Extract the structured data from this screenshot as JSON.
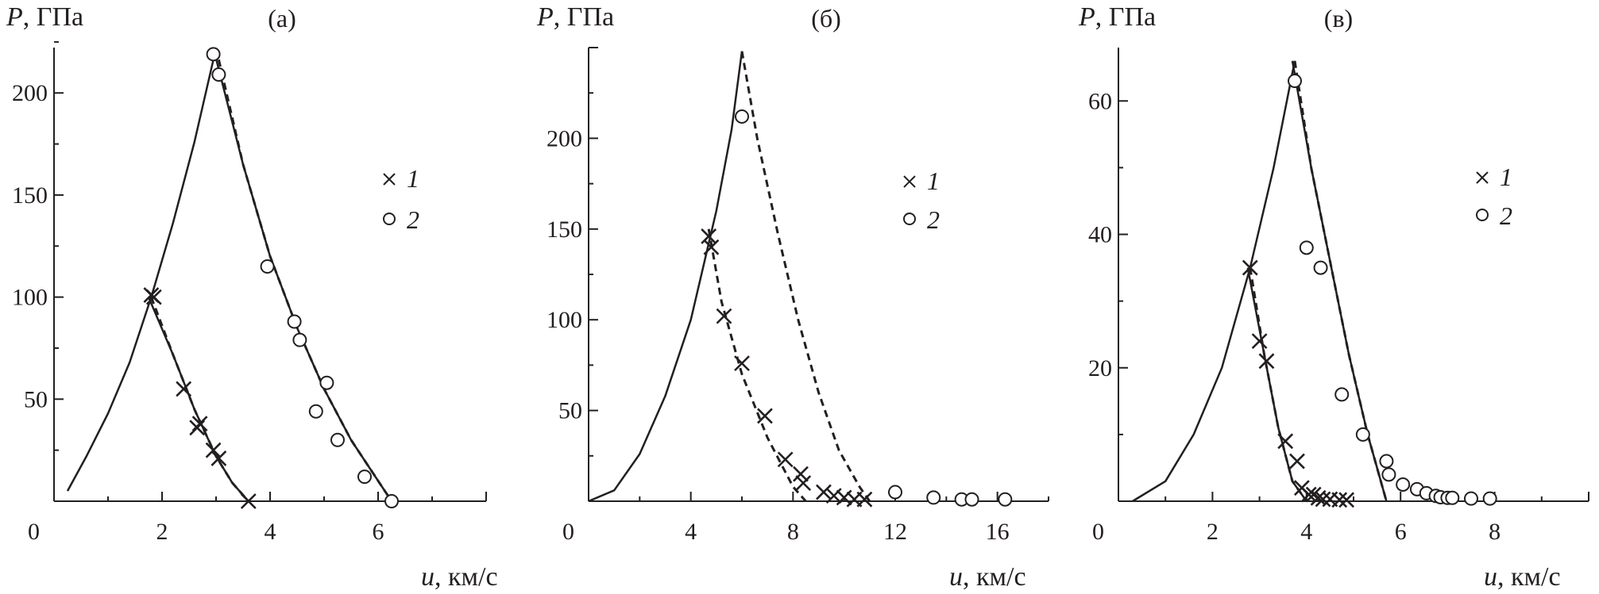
{
  "chart_data": [
    {
      "type": "scatter",
      "panel_label": "(а)",
      "ylabel_var": "P",
      "ylabel_unit": ", ГПа",
      "xlabel_var": "u",
      "xlabel_unit": ", км/с",
      "origin_label": "0",
      "xlim": [
        0,
        8
      ],
      "ylim": [
        0,
        230
      ],
      "xticks": [
        2,
        4,
        6
      ],
      "yticks": [
        50,
        100,
        150,
        200
      ],
      "legend": {
        "position": "right",
        "entries": [
          {
            "marker": "×",
            "label": "1"
          },
          {
            "marker": "○",
            "label": "2"
          }
        ]
      },
      "lines": [
        {
          "style": "solid",
          "x": [
            0.25,
            0.6,
            1.0,
            1.4,
            1.8,
            2.2,
            2.6,
            3.0
          ],
          "y": [
            5,
            22,
            43,
            68,
            100,
            136,
            176,
            222
          ]
        },
        {
          "style": "dashed",
          "x": [
            1.8,
            2.2,
            2.6,
            3.0,
            3.3,
            3.6
          ],
          "y": [
            100,
            72,
            45,
            22,
            9,
            0
          ]
        },
        {
          "style": "solid",
          "x": [
            1.75,
            2.2,
            2.6,
            3.0,
            3.3,
            3.6
          ],
          "y": [
            100,
            72,
            45,
            22,
            9,
            0
          ]
        },
        {
          "style": "dashed",
          "x": [
            3.0,
            3.5,
            4.0,
            4.5,
            5.0,
            5.5,
            6.0,
            6.25
          ],
          "y": [
            222,
            165,
            120,
            85,
            55,
            30,
            10,
            0
          ]
        },
        {
          "style": "solid",
          "x": [
            2.95,
            3.5,
            4.0,
            4.5,
            5.0,
            5.5,
            6.0,
            6.25
          ],
          "y": [
            222,
            165,
            120,
            85,
            55,
            30,
            10,
            0
          ]
        }
      ],
      "series": [
        {
          "name": "1",
          "marker": "cross",
          "x": [
            1.8,
            1.85,
            2.4,
            2.65,
            2.7,
            2.95,
            3.05,
            3.6
          ],
          "y": [
            101,
            100,
            55,
            36,
            38,
            25,
            21,
            0
          ]
        },
        {
          "name": "2",
          "marker": "circle",
          "x": [
            2.95,
            3.05,
            3.95,
            4.45,
            4.55,
            5.05,
            4.85,
            5.25,
            5.75,
            6.25
          ],
          "y": [
            219,
            209,
            115,
            88,
            79,
            58,
            44,
            30,
            12,
            0
          ]
        }
      ]
    },
    {
      "type": "scatter",
      "panel_label": "(б)",
      "ylabel_var": "P",
      "ylabel_unit": ", ГПа",
      "xlabel_var": "u",
      "xlabel_unit": ", км/с",
      "origin_label": "0",
      "xlim": [
        0,
        18
      ],
      "ylim": [
        0,
        250
      ],
      "xticks": [
        4,
        8,
        12,
        16
      ],
      "yticks": [
        50,
        100,
        150,
        200
      ],
      "legend": {
        "position": "right",
        "entries": [
          {
            "marker": "×",
            "label": "1"
          },
          {
            "marker": "○",
            "label": "2"
          }
        ]
      },
      "lines": [
        {
          "style": "solid",
          "x": [
            0,
            1,
            2,
            3,
            4,
            5,
            5.6,
            6.0
          ],
          "y": [
            0,
            6,
            26,
            58,
            100,
            160,
            205,
            248
          ]
        },
        {
          "style": "dashed",
          "x": [
            4.7,
            5.2,
            6.0,
            7.0,
            8.0,
            8.5
          ],
          "y": [
            150,
            110,
            70,
            35,
            8,
            0
          ]
        },
        {
          "style": "dashed",
          "x": [
            6.0,
            6.6,
            7.4,
            8.2,
            9.0,
            9.8,
            10.6,
            11.0
          ],
          "y": [
            248,
            200,
            148,
            100,
            60,
            28,
            8,
            0
          ]
        }
      ],
      "series": [
        {
          "name": "1",
          "marker": "cross",
          "x": [
            4.7,
            4.8,
            5.3,
            6.0,
            6.9,
            7.7,
            8.3,
            8.4,
            9.2,
            9.6,
            10.0,
            10.4,
            10.8
          ],
          "y": [
            146,
            140,
            102,
            76,
            47,
            23,
            15,
            10,
            5,
            3,
            2,
            1,
            1
          ]
        },
        {
          "name": "2",
          "marker": "circle",
          "x": [
            6.0,
            12.0,
            13.5,
            14.6,
            15.0,
            16.3
          ],
          "y": [
            212,
            5,
            2,
            1,
            1,
            1
          ]
        }
      ]
    },
    {
      "type": "scatter",
      "panel_label": "(в)",
      "ylabel_var": "P",
      "ylabel_unit": ", ГПа",
      "xlabel_var": "u",
      "xlabel_unit": ", км/с",
      "origin_label": "0",
      "xlim": [
        0,
        10
      ],
      "ylim": [
        0,
        68
      ],
      "xticks": [
        2,
        4,
        6,
        8
      ],
      "yticks": [
        20,
        40,
        60
      ],
      "legend": {
        "position": "right",
        "entries": [
          {
            "marker": "×",
            "label": "1"
          },
          {
            "marker": "○",
            "label": "2"
          }
        ]
      },
      "lines": [
        {
          "style": "solid",
          "x": [
            0.3,
            1.0,
            1.6,
            2.2,
            2.8,
            3.3,
            3.75
          ],
          "y": [
            0,
            3,
            10,
            20,
            35,
            50,
            66
          ]
        },
        {
          "style": "dashed",
          "x": [
            2.8,
            3.1,
            3.4,
            3.7,
            3.9,
            4.0
          ],
          "y": [
            35,
            22,
            11,
            3,
            1,
            0
          ]
        },
        {
          "style": "solid",
          "x": [
            2.75,
            3.1,
            3.4,
            3.7,
            3.9,
            4.0
          ],
          "y": [
            35,
            22,
            11,
            3,
            1,
            0
          ]
        },
        {
          "style": "dashed",
          "x": [
            3.75,
            4.1,
            4.5,
            4.9,
            5.3,
            5.7
          ],
          "y": [
            66,
            50,
            36,
            22,
            10,
            0
          ]
        },
        {
          "style": "solid",
          "x": [
            3.7,
            4.1,
            4.5,
            4.9,
            5.3,
            5.7
          ],
          "y": [
            66,
            50,
            36,
            22,
            10,
            0
          ]
        }
      ],
      "series": [
        {
          "name": "1",
          "marker": "cross",
          "x": [
            2.8,
            3.0,
            3.15,
            3.55,
            3.8,
            3.9,
            4.05,
            4.15,
            4.25,
            4.35,
            4.5,
            4.7,
            4.85
          ],
          "y": [
            35,
            24,
            21,
            9,
            6,
            2,
            1,
            1,
            0.5,
            0.3,
            0.3,
            0.2,
            0.2
          ]
        },
        {
          "name": "2",
          "marker": "circle",
          "x": [
            3.75,
            4.0,
            4.3,
            4.75,
            5.2,
            5.7,
            5.75,
            6.05,
            6.35,
            6.55,
            6.75,
            6.85,
            7.0,
            7.1,
            7.5,
            7.9
          ],
          "y": [
            63,
            38,
            35,
            16,
            10,
            6,
            4,
            2.5,
            1.8,
            1.2,
            0.8,
            0.6,
            0.5,
            0.5,
            0.4,
            0.4
          ]
        }
      ]
    }
  ]
}
